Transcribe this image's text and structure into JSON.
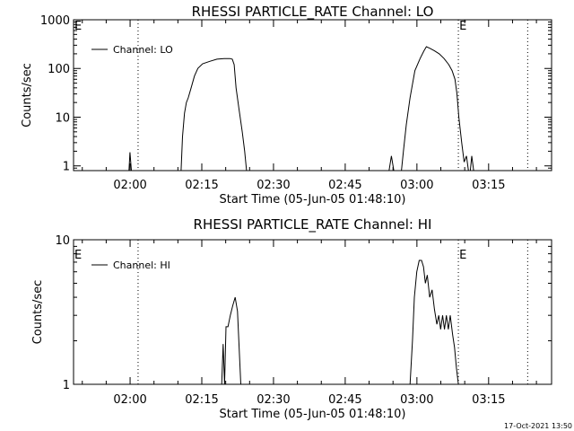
{
  "chart_data": [
    {
      "type": "line",
      "title": "RHESSI PARTICLE_RATE Channel: LO",
      "xlabel": "Start Time (05-Jun-05 01:48:10)",
      "ylabel": "Counts/sec",
      "yscale": "log",
      "ylim": [
        0.8,
        1000
      ],
      "xlim_min_from_start": [
        0,
        100
      ],
      "x_ticks": [
        "02:00",
        "02:15",
        "02:30",
        "02:45",
        "03:00",
        "03:15"
      ],
      "y_ticks": [
        "1",
        "10",
        "100",
        "1000"
      ],
      "legend": "Channel: LO",
      "legend_position": "top-left",
      "event_markers": [
        {
          "label": "E",
          "t_min": 0
        },
        {
          "label": "E",
          "t_min": 80.5
        }
      ],
      "dotted_lines_min": [
        13.5,
        80.5,
        95
      ],
      "series": [
        {
          "name": "Channel: LO",
          "segments": [
            [
              [
                11.6,
                0.8
              ],
              [
                11.8,
                1.9
              ],
              [
                12.1,
                0.8
              ]
            ],
            [
              [
                22.5,
                0.8
              ],
              [
                22.8,
                4
              ],
              [
                23.2,
                12
              ],
              [
                23.6,
                20
              ],
              [
                24.0,
                25
              ],
              [
                24.6,
                40
              ],
              [
                25.3,
                70
              ],
              [
                26.0,
                100
              ],
              [
                27.0,
                125
              ],
              [
                28.5,
                140
              ],
              [
                30.0,
                155
              ],
              [
                31.5,
                160
              ],
              [
                32.7,
                160
              ],
              [
                33.2,
                155
              ],
              [
                33.6,
                120
              ],
              [
                34.0,
                40
              ],
              [
                34.6,
                15
              ],
              [
                35.3,
                5
              ],
              [
                35.8,
                2
              ],
              [
                36.2,
                0.8
              ]
            ],
            [
              [
                66.0,
                0.8
              ],
              [
                66.5,
                1.6
              ],
              [
                67.0,
                0.8
              ]
            ],
            [
              [
                68.6,
                0.8
              ],
              [
                69.0,
                2
              ],
              [
                69.6,
                7
              ],
              [
                70.4,
                25
              ],
              [
                71.4,
                90
              ],
              [
                72.5,
                160
              ],
              [
                73.3,
                230
              ],
              [
                73.8,
                280
              ],
              [
                74.5,
                260
              ],
              [
                75.5,
                230
              ],
              [
                76.5,
                200
              ],
              [
                77.5,
                160
              ],
              [
                78.5,
                120
              ],
              [
                79.2,
                90
              ],
              [
                79.8,
                60
              ],
              [
                80.2,
                30
              ],
              [
                80.6,
                10
              ],
              [
                81.2,
                3
              ],
              [
                81.7,
                1.2
              ],
              [
                82.2,
                1.6
              ],
              [
                82.6,
                0.8
              ]
            ],
            [
              [
                83.0,
                0.8
              ],
              [
                83.3,
                1.6
              ],
              [
                83.7,
                0.8
              ]
            ]
          ]
        }
      ]
    },
    {
      "type": "line",
      "title": "RHESSI PARTICLE_RATE Channel: HI",
      "xlabel": "Start Time (05-Jun-05 01:48:10)",
      "ylabel": "Counts/sec",
      "yscale": "log",
      "ylim": [
        1,
        10
      ],
      "xlim_min_from_start": [
        0,
        100
      ],
      "x_ticks": [
        "02:00",
        "02:15",
        "02:30",
        "02:45",
        "03:00",
        "03:15"
      ],
      "y_ticks": [
        "1",
        "10"
      ],
      "legend": "Channel: HI",
      "legend_position": "top-left",
      "event_markers": [
        {
          "label": "E",
          "t_min": 0
        },
        {
          "label": "E",
          "t_min": 80.5
        }
      ],
      "dotted_lines_min": [
        13.5,
        80.5,
        95
      ],
      "series": [
        {
          "name": "Channel: HI",
          "segments": [
            [
              [
                31.0,
                1
              ],
              [
                31.3,
                1.9
              ],
              [
                31.6,
                1
              ],
              [
                31.9,
                2.5
              ],
              [
                32.3,
                2.5
              ],
              [
                32.8,
                3.0
              ],
              [
                33.3,
                3.5
              ],
              [
                33.8,
                4.0
              ],
              [
                34.3,
                3.2
              ],
              [
                34.7,
                1.6
              ],
              [
                35.0,
                1
              ]
            ],
            [
              [
                70.4,
                1
              ],
              [
                70.9,
                2
              ],
              [
                71.3,
                4
              ],
              [
                71.8,
                6
              ],
              [
                72.3,
                7.2
              ],
              [
                72.8,
                7.2
              ],
              [
                73.2,
                6.5
              ],
              [
                73.6,
                5.0
              ],
              [
                74.0,
                5.7
              ],
              [
                74.5,
                4.0
              ],
              [
                75.0,
                4.5
              ],
              [
                75.5,
                3.3
              ],
              [
                76.0,
                2.6
              ],
              [
                76.4,
                3.0
              ],
              [
                76.8,
                2.4
              ],
              [
                77.2,
                3.0
              ],
              [
                77.6,
                2.4
              ],
              [
                78.0,
                3.0
              ],
              [
                78.4,
                2.4
              ],
              [
                78.8,
                3.0
              ],
              [
                79.3,
                2.2
              ],
              [
                79.7,
                1.8
              ],
              [
                80.1,
                1.3
              ],
              [
                80.5,
                1
              ]
            ]
          ]
        }
      ]
    }
  ],
  "timestamp": "17-Oct-2021 13:50"
}
